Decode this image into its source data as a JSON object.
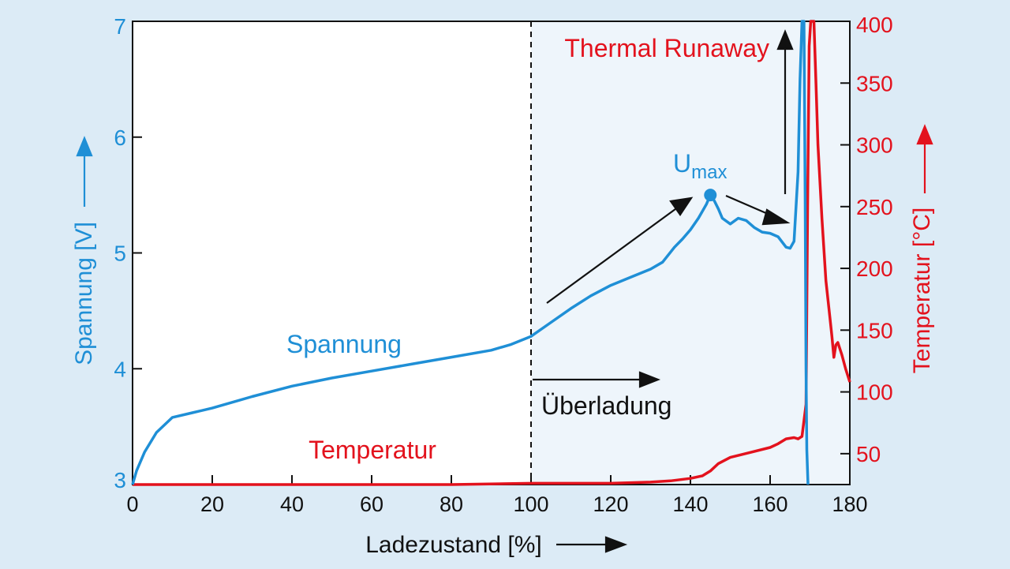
{
  "chart_data": {
    "type": "line",
    "xlabel": "Ladezustand [%]",
    "ylabel_left": "Spannung [V]",
    "ylabel_right": "Temperatur [°C]",
    "xlim": [
      0,
      180
    ],
    "ylim_left": [
      3,
      7
    ],
    "ylim_right": [
      25,
      400
    ],
    "x_ticks": [
      0,
      20,
      40,
      60,
      80,
      100,
      120,
      140,
      160,
      180
    ],
    "y_left_ticks": [
      3,
      4,
      5,
      6,
      7
    ],
    "y_right_ticks": [
      50,
      100,
      150,
      200,
      250,
      300,
      350,
      400
    ],
    "colors": {
      "voltage": "#1f8fd6",
      "temperature": "#e3121d",
      "shade": "#eef5fb",
      "arrow": "#111111"
    },
    "series": [
      {
        "name": "Spannung",
        "axis": "left",
        "x": [
          0,
          1,
          3,
          6,
          10,
          15,
          20,
          30,
          40,
          50,
          60,
          70,
          80,
          90,
          95,
          100,
          105,
          110,
          115,
          120,
          125,
          130,
          133,
          136,
          138,
          140,
          142,
          144,
          145,
          146,
          147,
          148,
          150,
          152,
          154,
          156,
          158,
          160,
          162,
          164,
          165,
          166,
          167,
          167.5,
          168,
          168.5,
          168.8,
          169,
          169.2,
          169.5
        ],
        "y": [
          3.0,
          3.12,
          3.28,
          3.45,
          3.58,
          3.62,
          3.66,
          3.76,
          3.85,
          3.92,
          3.98,
          4.04,
          4.1,
          4.16,
          4.21,
          4.28,
          4.4,
          4.52,
          4.63,
          4.72,
          4.79,
          4.86,
          4.92,
          5.05,
          5.12,
          5.2,
          5.3,
          5.42,
          5.5,
          5.45,
          5.38,
          5.3,
          5.25,
          5.3,
          5.28,
          5.22,
          5.18,
          5.17,
          5.14,
          5.05,
          5.04,
          5.1,
          5.7,
          6.5,
          7.0,
          7.0,
          5.5,
          4.0,
          3.3,
          3.0
        ]
      },
      {
        "name": "Temperatur",
        "axis": "right",
        "x": [
          0,
          20,
          40,
          60,
          80,
          100,
          120,
          130,
          135,
          140,
          143,
          145,
          147,
          150,
          155,
          160,
          162,
          164,
          166,
          167,
          168,
          169,
          169.4,
          169.8,
          170.2,
          170.6,
          171,
          171.5,
          172,
          173,
          174,
          175,
          175.5,
          176,
          176.5,
          177,
          178,
          179,
          180
        ],
        "y": [
          25,
          25,
          25,
          25,
          25,
          26,
          26,
          27,
          28,
          30,
          32,
          36,
          42,
          47,
          51,
          55,
          58,
          62,
          63,
          62,
          64,
          90,
          250,
          380,
          410,
          410,
          400,
          350,
          300,
          240,
          190,
          160,
          145,
          128,
          138,
          140,
          130,
          118,
          108
        ]
      }
    ],
    "annotations": {
      "voltage_label": "Spannung",
      "temperature_label": "Temperatur",
      "umax_main": "U",
      "umax_sub": "max",
      "thermal_runaway": "Thermal Runaway",
      "overcharge": "Überladung"
    },
    "umax_point": {
      "x": 145,
      "y": 5.5
    }
  }
}
